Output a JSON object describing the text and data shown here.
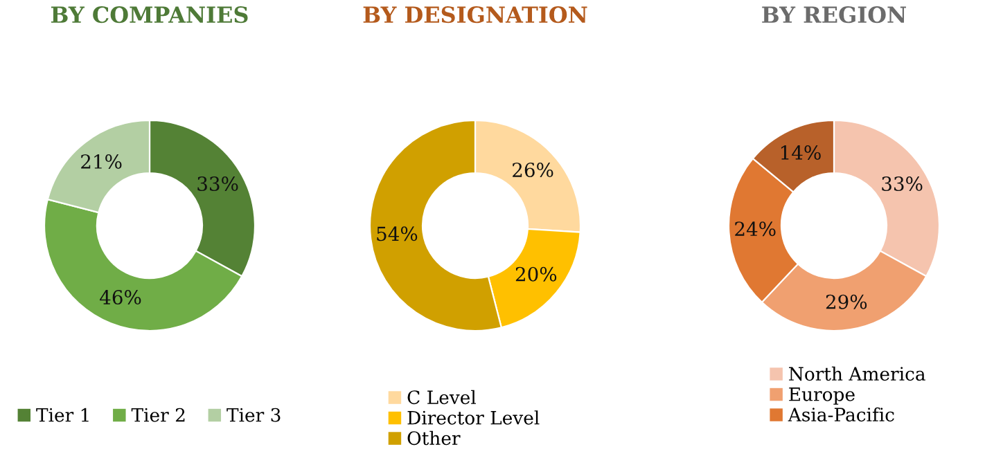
{
  "chart_data": [
    {
      "type": "donut",
      "title": "BY COMPANIES",
      "categories": [
        "Tier 1",
        "Tier 2",
        "Tier 3"
      ],
      "values": [
        33,
        46,
        21
      ],
      "colors": [
        "#548235",
        "#70ad47",
        "#b3cfa3"
      ],
      "value_labels": [
        "33%",
        "46%",
        "21%"
      ],
      "legend": "bottom"
    },
    {
      "type": "donut",
      "title": "BY DESIGNATION",
      "categories": [
        "C Level",
        "Director Level",
        "Other"
      ],
      "values": [
        26,
        20,
        54
      ],
      "colors": [
        "#ffd99e",
        "#ffc000",
        "#d0a000"
      ],
      "value_labels": [
        "26%",
        "20%",
        "54%"
      ],
      "legend": "bottom"
    },
    {
      "type": "donut",
      "title": "BY REGION",
      "categories": [
        "North America",
        "Europe",
        "Asia-Pacific",
        null
      ],
      "values": [
        33,
        29,
        24,
        14
      ],
      "colors": [
        "#f5c4ae",
        "#f0a070",
        "#e07832",
        "#b8612a"
      ],
      "value_labels": [
        "33%",
        "29%",
        "24%",
        "14%"
      ],
      "legend": "bottom"
    }
  ]
}
